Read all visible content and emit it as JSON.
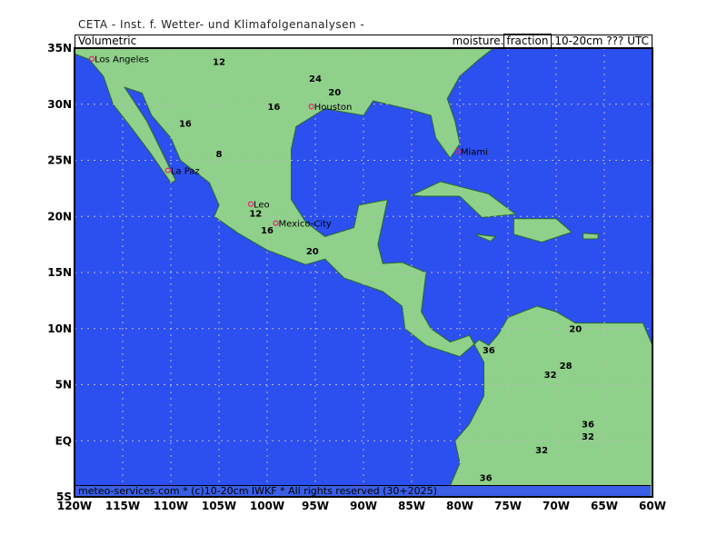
{
  "header": "CETA - Inst. f. Wetter- und Klimafolgenanalysen -",
  "title_left": "Volumetric",
  "title_right": {
    "pre": "moisture.",
    "box": "fraction",
    "post": ".10-20cm ??? UTC"
  },
  "footer": "meteo-services.com * (c)10-20cm IWKF * All rights reserved (30+2025)",
  "map": {
    "lon_range": [
      -120,
      -60
    ],
    "lat_range": [
      -5,
      35
    ],
    "lon_ticks": [
      "120W",
      "115W",
      "110W",
      "105W",
      "100W",
      "95W",
      "90W",
      "85W",
      "80W",
      "75W",
      "70W",
      "65W",
      "60W"
    ],
    "lat_ticks": [
      "5S",
      "EQ",
      "5N",
      "10N",
      "15N",
      "20N",
      "25N",
      "30N",
      "35N"
    ],
    "colors": {
      "ocean": "#2c4ff0",
      "dry": "#ffa500",
      "mid": "#ffd24a",
      "light": "#fff3b0",
      "wet": "#9ff0ee",
      "wetter": "#5ad2ea",
      "wettest": "#48a8e6"
    },
    "cities": [
      {
        "name": "Los Angeles",
        "lon": -118.2,
        "lat": 34.05
      },
      {
        "name": "Houston",
        "lon": -95.4,
        "lat": 29.8
      },
      {
        "name": "Miami",
        "lon": -80.2,
        "lat": 25.8
      },
      {
        "name": "La Paz",
        "lon": -110.3,
        "lat": 24.1
      },
      {
        "name": "Leo",
        "lon": -101.7,
        "lat": 21.1
      },
      {
        "name": "Mexico-City",
        "lon": -99.1,
        "lat": 19.4
      }
    ],
    "contour_labels": [
      {
        "text": "12",
        "lon": -105,
        "lat": 33.5
      },
      {
        "text": "24",
        "lon": -95,
        "lat": 32
      },
      {
        "text": "20",
        "lon": -93,
        "lat": 30.8
      },
      {
        "text": "16",
        "lon": -108.5,
        "lat": 28
      },
      {
        "text": "16",
        "lon": -99.3,
        "lat": 29.5
      },
      {
        "text": "8",
        "lon": -105,
        "lat": 25.3
      },
      {
        "text": "12",
        "lon": -101.2,
        "lat": 20
      },
      {
        "text": "16",
        "lon": -100,
        "lat": 18.5
      },
      {
        "text": "20",
        "lon": -95.3,
        "lat": 16.6
      },
      {
        "text": "20",
        "lon": -68,
        "lat": 9.7
      },
      {
        "text": "36",
        "lon": -77,
        "lat": 7.8
      },
      {
        "text": "28",
        "lon": -69,
        "lat": 6.4
      },
      {
        "text": "32",
        "lon": -70.6,
        "lat": 5.6
      },
      {
        "text": "36",
        "lon": -66.7,
        "lat": 1.2
      },
      {
        "text": "32",
        "lon": -66.7,
        "lat": 0.1
      },
      {
        "text": "32",
        "lon": -71.5,
        "lat": -1.1
      },
      {
        "text": "36",
        "lon": -77.3,
        "lat": -3.6
      }
    ]
  }
}
